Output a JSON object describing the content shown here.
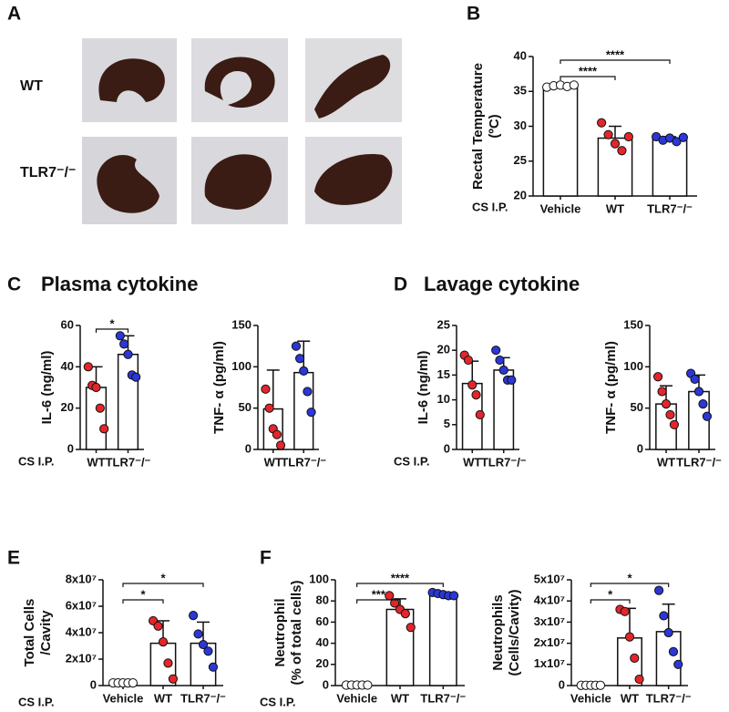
{
  "panel_labels": [
    "A",
    "B",
    "C",
    "D",
    "E",
    "F"
  ],
  "section_titles": [
    "Plasma cytokine",
    "Lavage cytokine"
  ],
  "panel_a": {
    "row_labels": [
      "WT",
      "TLR7⁻/⁻"
    ]
  },
  "chart_data": [
    {
      "type": "bar",
      "ylabel": [
        "Rectal Temperature",
        "(ºC)"
      ],
      "group_label": "CS I.P.",
      "categories": [
        "Vehicle",
        "WT",
        "TLR7⁻/⁻"
      ],
      "values": [
        35.8,
        28.3,
        28.2
      ],
      "errors": [
        0.2,
        1.7,
        0.3
      ],
      "points": [
        [
          35.6,
          35.8,
          35.9,
          35.7,
          35.9
        ],
        [
          30.5,
          28.8,
          27.5,
          26.5,
          28.5
        ],
        [
          28.5,
          28.0,
          28.3,
          27.8,
          28.4
        ]
      ],
      "point_colors": [
        "#ffffff",
        "#e3262b",
        "#2b37d6"
      ],
      "bar_color": "#ffffff",
      "ylim": [
        20,
        40
      ],
      "yticks": [
        20,
        25,
        30,
        35,
        40
      ],
      "significance": [
        {
          "pair": [
            "Vehicle",
            "WT"
          ],
          "label": "****"
        },
        {
          "pair": [
            "Vehicle",
            "TLR7⁻/⁻"
          ],
          "label": "****"
        }
      ]
    },
    {
      "type": "bar",
      "ylabel": [
        "IL-6 (ng/ml)"
      ],
      "group_label": "CS I.P.",
      "categories": [
        "WT",
        "TLR7⁻/⁻"
      ],
      "values": [
        30,
        46
      ],
      "errors": [
        10,
        9
      ],
      "points": [
        [
          40,
          31,
          30,
          20,
          10
        ],
        [
          55,
          51,
          46,
          36,
          35
        ]
      ],
      "point_colors": [
        "#e3262b",
        "#2b37d6"
      ],
      "bar_color": "#ffffff",
      "ylim": [
        0,
        60
      ],
      "yticks": [
        0,
        20,
        40,
        60
      ],
      "significance": [
        {
          "pair": [
            "WT",
            "TLR7⁻/⁻"
          ],
          "label": "*"
        }
      ]
    },
    {
      "type": "bar",
      "ylabel": [
        "TNF- α (pg/ml)"
      ],
      "categories": [
        "WT",
        "TLR7⁻/⁻"
      ],
      "values": [
        49,
        93
      ],
      "errors": [
        47,
        38
      ],
      "points": [
        [
          73,
          50,
          25,
          18,
          5
        ],
        [
          125,
          110,
          95,
          70,
          45
        ]
      ],
      "point_colors": [
        "#e3262b",
        "#2b37d6"
      ],
      "bar_color": "#ffffff",
      "ylim": [
        0,
        150
      ],
      "yticks": [
        0,
        50,
        100,
        150
      ],
      "significance": []
    },
    {
      "type": "bar",
      "ylabel": [
        "IL-6 (ng/ml)"
      ],
      "group_label": "CS I.P.",
      "categories": [
        "WT",
        "TLR7⁻/⁻"
      ],
      "values": [
        13.3,
        16
      ],
      "errors": [
        4.5,
        2.5
      ],
      "points": [
        [
          19,
          18,
          13,
          11,
          7
        ],
        [
          20,
          18,
          16,
          14,
          14
        ]
      ],
      "point_colors": [
        "#e3262b",
        "#2b37d6"
      ],
      "bar_color": "#ffffff",
      "ylim": [
        0,
        25
      ],
      "yticks": [
        0,
        5,
        10,
        15,
        20,
        25
      ],
      "significance": []
    },
    {
      "type": "bar",
      "ylabel": [
        "TNF- α (pg/ml)"
      ],
      "categories": [
        "WT",
        "TLR7⁻/⁻"
      ],
      "values": [
        55,
        70
      ],
      "errors": [
        22,
        20
      ],
      "points": [
        [
          88,
          70,
          55,
          42,
          30
        ],
        [
          92,
          85,
          70,
          55,
          40
        ]
      ],
      "point_colors": [
        "#e3262b",
        "#2b37d6"
      ],
      "bar_color": "#ffffff",
      "ylim": [
        0,
        150
      ],
      "yticks": [
        0,
        50,
        100,
        150
      ],
      "significance": []
    },
    {
      "type": "bar",
      "ylabel": [
        "Total Cells",
        "/Cavity"
      ],
      "group_label": "CS I.P.",
      "categories": [
        "Vehicle",
        "WT",
        "TLR7⁻/⁻"
      ],
      "values": [
        2000000,
        32000000,
        32000000
      ],
      "errors": [
        500000,
        17000000,
        16000000
      ],
      "points": [
        [
          2000000,
          2000000,
          2000000,
          2000000,
          2000000
        ],
        [
          49000000,
          45000000,
          33000000,
          17000000,
          5000000
        ],
        [
          53000000,
          39000000,
          31000000,
          26000000,
          14000000
        ]
      ],
      "point_colors": [
        "#ffffff",
        "#e3262b",
        "#2b37d6"
      ],
      "bar_color": "#ffffff",
      "ylim": [
        0,
        80000000
      ],
      "yticks": [
        0,
        {
          "value": 20000000,
          "label": "2x10⁷"
        },
        {
          "value": 40000000,
          "label": "4x10⁷"
        },
        {
          "value": 60000000,
          "label": "6x10⁷"
        },
        {
          "value": 80000000,
          "label": "8x10⁷"
        }
      ],
      "significance": [
        {
          "pair": [
            "Vehicle",
            "WT"
          ],
          "label": "*"
        },
        {
          "pair": [
            "Vehicle",
            "TLR7⁻/⁻"
          ],
          "label": "*"
        }
      ]
    },
    {
      "type": "bar",
      "ylabel": [
        "Neutrophil",
        "(% of total cells)"
      ],
      "group_label": "CS I.P.",
      "categories": [
        "Vehicle",
        "WT",
        "TLR7⁻/⁻"
      ],
      "values": [
        0.4,
        72,
        86
      ],
      "errors": [
        0.2,
        10,
        2
      ],
      "points": [
        [
          0.4,
          0.4,
          0.4,
          0.4,
          0.4
        ],
        [
          85,
          78,
          72,
          68,
          55
        ],
        [
          88,
          87,
          86,
          85,
          85
        ]
      ],
      "point_colors": [
        "#ffffff",
        "#e3262b",
        "#2b37d6"
      ],
      "bar_color": "#ffffff",
      "ylim": [
        0,
        100
      ],
      "yticks": [
        0,
        20,
        40,
        60,
        80,
        100
      ],
      "significance": [
        {
          "pair": [
            "Vehicle",
            "WT"
          ],
          "label": "***"
        },
        {
          "pair": [
            "Vehicle",
            "TLR7⁻/⁻"
          ],
          "label": "****"
        }
      ]
    },
    {
      "type": "bar",
      "ylabel": [
        "Neutrophils",
        "(Cells/Cavity)"
      ],
      "categories": [
        "Vehicle",
        "WT",
        "TLR7⁻/⁻"
      ],
      "values": [
        100000,
        22500000,
        25500000
      ],
      "errors": [
        50000,
        14000000,
        13000000
      ],
      "points": [
        [
          100000,
          100000,
          100000,
          100000,
          100000
        ],
        [
          36000000,
          35000000,
          23000000,
          13000000,
          3000000
        ],
        [
          45000000,
          33000000,
          25000000,
          16000000,
          10000000
        ]
      ],
      "point_colors": [
        "#ffffff",
        "#e3262b",
        "#2b37d6"
      ],
      "bar_color": "#ffffff",
      "ylim": [
        0,
        50000000
      ],
      "yticks": [
        0,
        {
          "value": 10000000,
          "label": "1x10⁷"
        },
        {
          "value": 20000000,
          "label": "2x10⁷"
        },
        {
          "value": 30000000,
          "label": "3x10⁷"
        },
        {
          "value": 40000000,
          "label": "4x10⁷"
        },
        {
          "value": 50000000,
          "label": "5x10⁷"
        }
      ],
      "significance": [
        {
          "pair": [
            "Vehicle",
            "WT"
          ],
          "label": "*"
        },
        {
          "pair": [
            "Vehicle",
            "TLR7⁻/⁻"
          ],
          "label": "*"
        }
      ]
    }
  ]
}
